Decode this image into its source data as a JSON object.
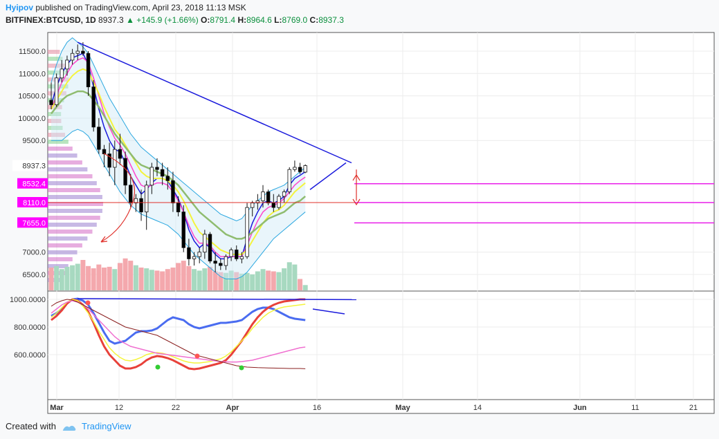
{
  "header": {
    "author": "Hyipov",
    "published": "published on TradingView.com, April 23, 2018 11:13 MSK",
    "symbol": "BITFINEX:BTCUSD, 1D",
    "last": "8937.3",
    "up_arrow": "▲",
    "change": "+145.9 (+1.66%)",
    "o_label": "O:",
    "o_value": "8791.4",
    "h_label": "H:",
    "h_value": "8964.6",
    "l_label": "L:",
    "l_value": "8769.0",
    "c_label": "C:",
    "c_value": "8937.3"
  },
  "footer": {
    "created_with": "Created with",
    "brand": "TradingView"
  },
  "colors": {
    "up": "#ffffff",
    "down": "#000000",
    "trendline": "#1a1adc",
    "level_line": "#e91ee9",
    "level_label_bg": "#ff00ff",
    "ma_fast": "#1a1adc",
    "ma_pink": "#ff44cc",
    "ma_yellow": "#f4f43c",
    "ma_green": "#8fbc6f",
    "band": "#2aa7e0",
    "vol_up": "#a7d9c0",
    "vol_down": "#f4a8ad"
  },
  "chart_data": {
    "type": "candlestick",
    "symbol": "BITFINEX:BTCUSD",
    "timeframe": "1D",
    "x_ticks": [
      "Mar",
      "12",
      "22",
      "Apr",
      "16",
      "May",
      "14",
      "Jun",
      "11",
      "21"
    ],
    "y_ticks": [
      "11500.0",
      "11000.0",
      "10500.0",
      "10000.0",
      "9500.0",
      "7000.0",
      "6500.0"
    ],
    "current_price_label": "8937.3",
    "level_labels": [
      "8532.4",
      "8110.0",
      "7655.0"
    ],
    "ylim": [
      6100,
      11900
    ],
    "candles": [
      [
        10400,
        10800,
        10200,
        10300
      ],
      [
        10300,
        11000,
        10250,
        10900
      ],
      [
        10900,
        11300,
        10800,
        11100
      ],
      [
        11100,
        11400,
        10950,
        11300
      ],
      [
        11300,
        11550,
        11200,
        11450
      ],
      [
        11450,
        11650,
        11300,
        11500
      ],
      [
        11500,
        11700,
        11400,
        11450
      ],
      [
        11450,
        11500,
        10500,
        10700
      ],
      [
        10700,
        10850,
        9700,
        9800
      ],
      [
        9800,
        10000,
        9200,
        9300
      ],
      [
        9300,
        9400,
        8900,
        9200
      ],
      [
        9200,
        9450,
        8700,
        8900
      ],
      [
        8900,
        9500,
        8500,
        9300
      ],
      [
        9300,
        9650,
        8950,
        9100
      ],
      [
        9100,
        9250,
        8300,
        8500
      ],
      [
        8500,
        8750,
        8000,
        8100
      ],
      [
        8100,
        8300,
        7900,
        8200
      ],
      [
        8200,
        8400,
        7700,
        7900
      ],
      [
        7900,
        8600,
        7500,
        8500
      ],
      [
        8500,
        9000,
        8300,
        8900
      ],
      [
        8900,
        9100,
        8700,
        8850
      ],
      [
        8850,
        9000,
        8500,
        8700
      ],
      [
        8700,
        8900,
        8400,
        8600
      ],
      [
        8600,
        8800,
        7900,
        8100
      ],
      [
        8100,
        8250,
        7800,
        7900
      ],
      [
        7900,
        8050,
        7000,
        7100
      ],
      [
        7100,
        7300,
        6700,
        6850
      ],
      [
        6850,
        7000,
        6700,
        6900
      ],
      [
        6900,
        7100,
        6750,
        7000
      ],
      [
        7000,
        7500,
        6850,
        7400
      ],
      [
        7400,
        7450,
        6750,
        6800
      ],
      [
        6800,
        7000,
        6550,
        6750
      ],
      [
        6750,
        6850,
        6600,
        6700
      ],
      [
        6700,
        6950,
        6600,
        6900
      ],
      [
        6900,
        7100,
        6800,
        7050
      ],
      [
        7050,
        7150,
        6800,
        6850
      ],
      [
        6850,
        7000,
        6750,
        6900
      ],
      [
        6900,
        8100,
        6850,
        8000
      ],
      [
        8000,
        8150,
        7800,
        8100
      ],
      [
        8100,
        8300,
        7950,
        8150
      ],
      [
        8150,
        8500,
        8000,
        8350
      ],
      [
        8350,
        8400,
        8050,
        8100
      ],
      [
        8100,
        8300,
        7900,
        8000
      ],
      [
        8000,
        8300,
        7950,
        8250
      ],
      [
        8250,
        8400,
        8100,
        8350
      ],
      [
        8350,
        8900,
        8300,
        8850
      ],
      [
        8850,
        9050,
        8800,
        8900
      ],
      [
        8900,
        9000,
        8750,
        8800
      ],
      [
        8791.4,
        8964.6,
        8769.0,
        8937.3
      ]
    ],
    "volumes": [
      3.0,
      3.2,
      2.8,
      3.1,
      3.3,
      3.5,
      4.0,
      3.2,
      2.9,
      3.4,
      3.0,
      3.1,
      2.8,
      3.6,
      4.2,
      3.9,
      3.3,
      3.0,
      2.9,
      2.7,
      2.6,
      2.5,
      2.8,
      3.0,
      3.6,
      3.9,
      3.2,
      2.8,
      2.6,
      2.9,
      3.1,
      2.5,
      2.4,
      2.3,
      2.6,
      2.4,
      2.2,
      2.3,
      2.1,
      2.5,
      2.8,
      2.6,
      2.5,
      2.4,
      2.9,
      3.7,
      3.4,
      1.5,
      0.7
    ],
    "series": [
      {
        "name": "",
        "values": [
          10300,
          10700,
          11000,
          11200,
          11350,
          11400,
          11450,
          11200,
          10700,
          10200,
          9800,
          9500,
          9300,
          9250,
          9000,
          8700,
          8500,
          8300,
          8400,
          8550,
          8650,
          8650,
          8600,
          8400,
          8200,
          7900,
          7500,
          7250,
          7100,
          7200,
          7100,
          6950,
          6850,
          6850,
          6900,
          6900,
          6900,
          7300,
          7650,
          7900,
          8100,
          8150,
          8100,
          8150,
          8250,
          8500,
          8650,
          8720,
          8800
        ]
      },
      {
        "name": "",
        "values": [
          10200,
          10500,
          10800,
          11000,
          11200,
          11300,
          11350,
          11250,
          10900,
          10500,
          10100,
          9800,
          9550,
          9400,
          9200,
          8950,
          8700,
          8500,
          8450,
          8500,
          8550,
          8550,
          8500,
          8350,
          8150,
          7900,
          7600,
          7350,
          7200,
          7200,
          7150,
          7000,
          6900,
          6900,
          6900,
          6900,
          6900,
          7150,
          7450,
          7700,
          7900,
          8000,
          8050,
          8100,
          8200,
          8350,
          8500,
          8600,
          8680
        ]
      },
      {
        "name": "",
        "values": [
          10200,
          10400,
          10600,
          10800,
          10950,
          11050,
          11100,
          11050,
          10800,
          10550,
          10250,
          10000,
          9750,
          9600,
          9400,
          9200,
          9000,
          8800,
          8700,
          8650,
          8650,
          8650,
          8600,
          8500,
          8350,
          8150,
          7900,
          7650,
          7450,
          7350,
          7250,
          7150,
          7050,
          7000,
          6950,
          6950,
          6950,
          7050,
          7250,
          7450,
          7650,
          7800,
          7900,
          7950,
          8050,
          8200,
          8350,
          8450,
          8550
        ]
      },
      {
        "name": "",
        "values": [
          10100,
          10250,
          10400,
          10500,
          10550,
          10600,
          10600,
          10550,
          10400,
          10250,
          10050,
          9850,
          9650,
          9500,
          9350,
          9200,
          9050,
          8950,
          8900,
          8850,
          8800,
          8750,
          8700,
          8600,
          8500,
          8350,
          8200,
          8050,
          7900,
          7800,
          7700,
          7600,
          7500,
          7400,
          7350,
          7300,
          7300,
          7350,
          7450,
          7550,
          7650,
          7750,
          7800,
          7850,
          7900,
          8000,
          8100,
          8150,
          8250
        ]
      },
      {
        "name": "",
        "values": [
          10800,
          11200,
          11500,
          11700,
          11800,
          11700,
          11600,
          11450,
          11200,
          10950,
          10700,
          10450,
          10250,
          10050,
          9850,
          9650,
          9500,
          9350,
          9250,
          9150,
          9050,
          8950,
          8850,
          8750,
          8650,
          8550,
          8450,
          8350,
          8250,
          8150,
          8050,
          7950,
          7850,
          7800,
          7750,
          7700,
          7750,
          7900,
          8050,
          8150,
          8250,
          8350,
          8400,
          8450,
          8500,
          8600,
          8700,
          8800,
          8900
        ]
      },
      {
        "name": "",
        "values": [
          9500,
          9500,
          9500,
          9600,
          9700,
          9750,
          9700,
          9600,
          9400,
          9200,
          8950,
          8750,
          8550,
          8350,
          8200,
          8050,
          7950,
          7850,
          7800,
          7750,
          7700,
          7650,
          7600,
          7500,
          7400,
          7250,
          7100,
          6950,
          6850,
          6750,
          6650,
          6550,
          6450,
          6400,
          6400,
          6400,
          6450,
          6550,
          6700,
          6850,
          7000,
          7150,
          7300,
          7400,
          7500,
          7600,
          7700,
          7800,
          7900
        ]
      }
    ],
    "oscillator": {
      "y_ticks": [
        "1000.0000",
        "800.0000",
        "600.0000"
      ],
      "ylim": [
        470,
        1030
      ],
      "series": [
        {
          "name": "",
          "values": [
            880,
            900,
            930,
            970,
            1000,
            1005,
            990,
            960,
            900,
            830,
            760,
            700,
            680,
            690,
            700,
            730,
            760,
            770,
            770,
            775,
            790,
            820,
            850,
            870,
            860,
            850,
            820,
            800,
            790,
            800,
            810,
            820,
            830,
            830,
            835,
            840,
            850,
            880,
            910,
            930,
            940,
            940,
            930,
            910,
            890,
            870,
            860,
            855,
            850
          ]
        },
        {
          "name": "",
          "values": [
            850,
            880,
            920,
            970,
            1000,
            990,
            960,
            910,
            830,
            740,
            660,
            600,
            560,
            520,
            500,
            500,
            510,
            530,
            560,
            580,
            590,
            585,
            575,
            560,
            540,
            520,
            500,
            495,
            500,
            510,
            520,
            530,
            540,
            560,
            600,
            650,
            700,
            760,
            820,
            870,
            910,
            940,
            960,
            975,
            985,
            990,
            995,
            1000,
            1000
          ]
        },
        {
          "name": "",
          "values": [
            870,
            900,
            940,
            980,
            1000,
            990,
            950,
            900,
            840,
            770,
            710,
            650,
            610,
            580,
            560,
            555,
            565,
            580,
            600,
            610,
            615,
            610,
            600,
            585,
            570,
            555,
            545,
            540,
            540,
            545,
            550,
            560,
            570,
            590,
            620,
            660,
            700,
            740,
            790,
            830,
            870,
            900,
            920,
            935,
            945,
            950,
            955,
            960,
            965
          ]
        },
        {
          "name": "",
          "values": [
            900,
            930,
            960,
            980,
            990,
            980,
            960,
            930,
            890,
            850,
            810,
            770,
            730,
            700,
            680,
            660,
            650,
            640,
            630,
            620,
            610,
            605,
            600,
            595,
            590,
            585,
            580,
            575,
            570,
            565,
            560,
            555,
            550,
            548,
            547,
            547,
            550,
            555,
            560,
            570,
            580,
            590,
            600,
            610,
            620,
            630,
            640,
            650,
            655
          ]
        },
        {
          "name": "",
          "values": [
            950,
            975,
            990,
            1000,
            995,
            980,
            960,
            940,
            920,
            900,
            880,
            860,
            840,
            820,
            800,
            790,
            780,
            770,
            760,
            750,
            740,
            720,
            700,
            680,
            660,
            640,
            620,
            600,
            590,
            580,
            570,
            560,
            550,
            540,
            530,
            520,
            515,
            510,
            508,
            506,
            505,
            504,
            503,
            502,
            501,
            500,
            500,
            500,
            498
          ]
        }
      ],
      "trendline_label": ""
    }
  }
}
